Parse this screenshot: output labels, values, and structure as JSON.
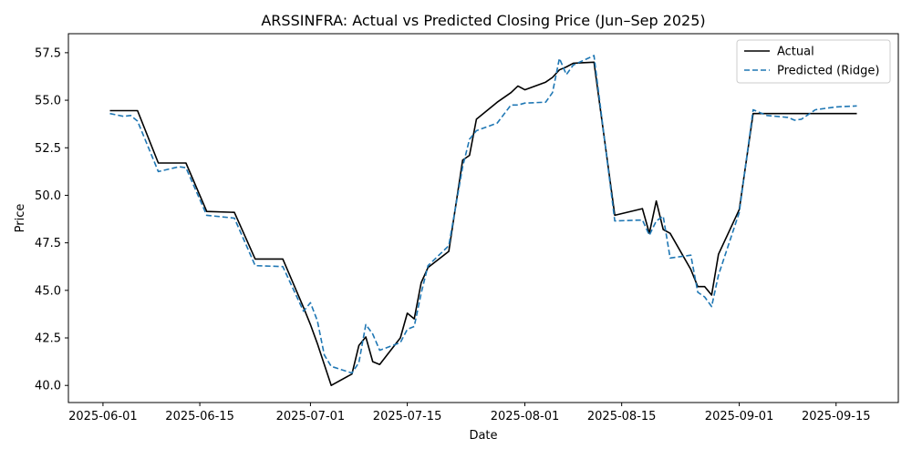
{
  "chart_data": {
    "type": "line",
    "title": "ARSSINFRA: Actual vs Predicted Closing Price (Jun–Sep 2025)",
    "xlabel": "Date",
    "ylabel": "Price",
    "xlim": [
      "2025-05-27",
      "2025-09-24"
    ],
    "ylim": [
      39.1,
      58.5
    ],
    "x_ticks": [
      "2025-06-01",
      "2025-06-15",
      "2025-07-01",
      "2025-07-15",
      "2025-08-01",
      "2025-08-15",
      "2025-09-01",
      "2025-09-15"
    ],
    "y_ticks": [
      40.0,
      42.5,
      45.0,
      47.5,
      50.0,
      52.5,
      55.0,
      57.5
    ],
    "y_tick_labels": [
      "40.0",
      "42.5",
      "45.0",
      "47.5",
      "50.0",
      "52.5",
      "55.0",
      "57.5"
    ],
    "grid": false,
    "legend_position": "top-right",
    "series": [
      {
        "name": "Actual",
        "color": "#000000",
        "style": "solid",
        "points": [
          [
            "2025-06-02",
            54.45
          ],
          [
            "2025-06-06",
            54.45
          ],
          [
            "2025-06-09",
            51.7
          ],
          [
            "2025-06-13",
            51.7
          ],
          [
            "2025-06-16",
            49.15
          ],
          [
            "2025-06-20",
            49.1
          ],
          [
            "2025-06-23",
            46.65
          ],
          [
            "2025-06-27",
            46.65
          ],
          [
            "2025-06-30",
            44.1
          ],
          [
            "2025-07-01",
            43.2
          ],
          [
            "2025-07-02",
            42.2
          ],
          [
            "2025-07-04",
            40.0
          ],
          [
            "2025-07-07",
            40.6
          ],
          [
            "2025-07-08",
            42.1
          ],
          [
            "2025-07-09",
            42.55
          ],
          [
            "2025-07-10",
            41.25
          ],
          [
            "2025-07-11",
            41.1
          ],
          [
            "2025-07-14",
            42.5
          ],
          [
            "2025-07-15",
            43.8
          ],
          [
            "2025-07-16",
            43.5
          ],
          [
            "2025-07-17",
            45.4
          ],
          [
            "2025-07-18",
            46.2
          ],
          [
            "2025-07-21",
            47.05
          ],
          [
            "2025-07-23",
            51.85
          ],
          [
            "2025-07-24",
            52.1
          ],
          [
            "2025-07-25",
            54.0
          ],
          [
            "2025-07-28",
            54.9
          ],
          [
            "2025-07-30",
            55.4
          ],
          [
            "2025-07-31",
            55.75
          ],
          [
            "2025-08-01",
            55.55
          ],
          [
            "2025-08-04",
            55.95
          ],
          [
            "2025-08-05",
            56.2
          ],
          [
            "2025-08-06",
            56.6
          ],
          [
            "2025-08-07",
            56.75
          ],
          [
            "2025-08-08",
            56.95
          ],
          [
            "2025-08-11",
            57.0
          ],
          [
            "2025-08-14",
            48.95
          ],
          [
            "2025-08-18",
            49.3
          ],
          [
            "2025-08-19",
            48.0
          ],
          [
            "2025-08-20",
            49.7
          ],
          [
            "2025-08-21",
            48.2
          ],
          [
            "2025-08-22",
            48.0
          ],
          [
            "2025-08-25",
            46.1
          ],
          [
            "2025-08-26",
            45.2
          ],
          [
            "2025-08-27",
            45.2
          ],
          [
            "2025-08-28",
            44.75
          ],
          [
            "2025-08-29",
            46.9
          ],
          [
            "2025-09-01",
            49.25
          ],
          [
            "2025-09-03",
            54.3
          ],
          [
            "2025-09-18",
            54.3
          ]
        ]
      },
      {
        "name": "Predicted (Ridge)",
        "color": "#1f77b4",
        "style": "dashed",
        "points": [
          [
            "2025-06-02",
            54.3
          ],
          [
            "2025-06-04",
            54.15
          ],
          [
            "2025-06-05",
            54.2
          ],
          [
            "2025-06-06",
            53.9
          ],
          [
            "2025-06-09",
            51.25
          ],
          [
            "2025-06-12",
            51.5
          ],
          [
            "2025-06-13",
            51.45
          ],
          [
            "2025-06-16",
            48.95
          ],
          [
            "2025-06-20",
            48.8
          ],
          [
            "2025-06-23",
            46.3
          ],
          [
            "2025-06-27",
            46.25
          ],
          [
            "2025-06-30",
            43.9
          ],
          [
            "2025-07-01",
            44.35
          ],
          [
            "2025-07-02",
            43.4
          ],
          [
            "2025-07-03",
            41.6
          ],
          [
            "2025-07-04",
            41.0
          ],
          [
            "2025-07-07",
            40.65
          ],
          [
            "2025-07-08",
            41.2
          ],
          [
            "2025-07-09",
            43.2
          ],
          [
            "2025-07-10",
            42.7
          ],
          [
            "2025-07-11",
            41.85
          ],
          [
            "2025-07-14",
            42.25
          ],
          [
            "2025-07-15",
            42.95
          ],
          [
            "2025-07-16",
            43.1
          ],
          [
            "2025-07-17",
            44.85
          ],
          [
            "2025-07-18",
            46.3
          ],
          [
            "2025-07-21",
            47.35
          ],
          [
            "2025-07-23",
            51.5
          ],
          [
            "2025-07-24",
            52.95
          ],
          [
            "2025-07-25",
            53.4
          ],
          [
            "2025-07-28",
            53.8
          ],
          [
            "2025-07-30",
            54.75
          ],
          [
            "2025-07-31",
            54.75
          ],
          [
            "2025-08-01",
            54.85
          ],
          [
            "2025-08-04",
            54.9
          ],
          [
            "2025-08-05",
            55.4
          ],
          [
            "2025-08-06",
            57.2
          ],
          [
            "2025-08-07",
            56.35
          ],
          [
            "2025-08-08",
            56.85
          ],
          [
            "2025-08-11",
            57.35
          ],
          [
            "2025-08-14",
            48.65
          ],
          [
            "2025-08-18",
            48.7
          ],
          [
            "2025-08-19",
            47.9
          ],
          [
            "2025-08-20",
            48.65
          ],
          [
            "2025-08-21",
            48.9
          ],
          [
            "2025-08-22",
            46.7
          ],
          [
            "2025-08-25",
            46.85
          ],
          [
            "2025-08-26",
            44.9
          ],
          [
            "2025-08-27",
            44.65
          ],
          [
            "2025-08-28",
            44.15
          ],
          [
            "2025-08-29",
            45.8
          ],
          [
            "2025-09-01",
            49.1
          ],
          [
            "2025-09-03",
            54.5
          ],
          [
            "2025-09-05",
            54.2
          ],
          [
            "2025-09-08",
            54.1
          ],
          [
            "2025-09-09",
            53.95
          ],
          [
            "2025-09-10",
            54.0
          ],
          [
            "2025-09-12",
            54.5
          ],
          [
            "2025-09-15",
            54.65
          ],
          [
            "2025-09-18",
            54.7
          ]
        ]
      }
    ]
  }
}
